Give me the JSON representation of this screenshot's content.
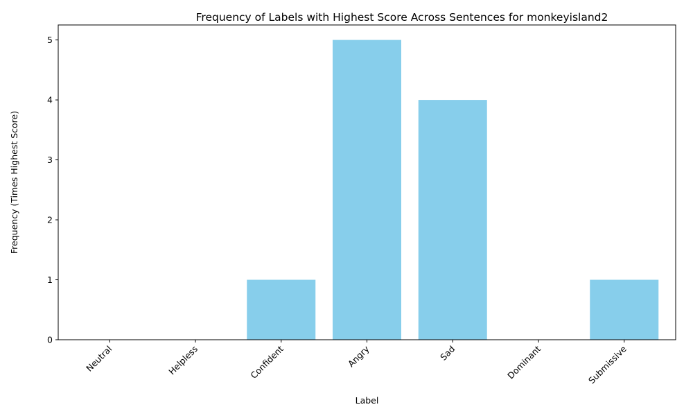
{
  "chart_data": {
    "type": "bar",
    "title": "Frequency of Labels with Highest Score Across Sentences for monkeyisland2",
    "xlabel": "Label",
    "ylabel": "Frequency (Times Highest Score)",
    "categories": [
      "Neutral",
      "Helpless",
      "Confident",
      "Angry",
      "Sad",
      "Dominant",
      "Submissive"
    ],
    "values": [
      0,
      0,
      1,
      5,
      4,
      0,
      1
    ],
    "ylim": [
      0,
      5.25
    ],
    "yticks": [
      0,
      1,
      2,
      3,
      4,
      5
    ],
    "bar_color": "#87ceeb",
    "grid": false,
    "legend": "none"
  }
}
